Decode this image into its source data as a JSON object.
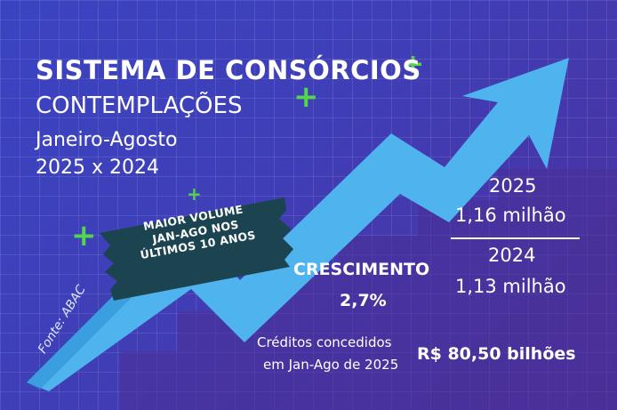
{
  "header": {
    "title": "SISTEMA DE CONSÓRCIOS",
    "subtitle": "CONTEMPLAÇÕES",
    "period": "Janeiro-Agosto",
    "comparison": "2025 x 2024"
  },
  "badge": {
    "line1": "MAIOR VOLUME",
    "line2": "JAN-AGO NOS",
    "line3": "ÚLTIMOS 10 ANOS"
  },
  "stats": {
    "year_2025": "2025",
    "value_2025": "1,16 milhão",
    "year_2024": "2024",
    "value_2024": "1,13 milhão"
  },
  "growth": {
    "label": "CRESCIMENTO",
    "value": "2,7%"
  },
  "credits": {
    "label_line1": "Créditos concedidos",
    "label_line2": "em Jan-Ago de 2025",
    "value": "R$ 80,50 bilhões"
  },
  "source": "Fonte: ABAC",
  "colors": {
    "background": "#3f3fb8",
    "arrow": "#4fb3ee",
    "badge": "#1b4450",
    "accent_plus": "#53d64a",
    "text": "#ffffff"
  },
  "icons": [
    "trend-up-arrow-icon",
    "plus-icon"
  ]
}
